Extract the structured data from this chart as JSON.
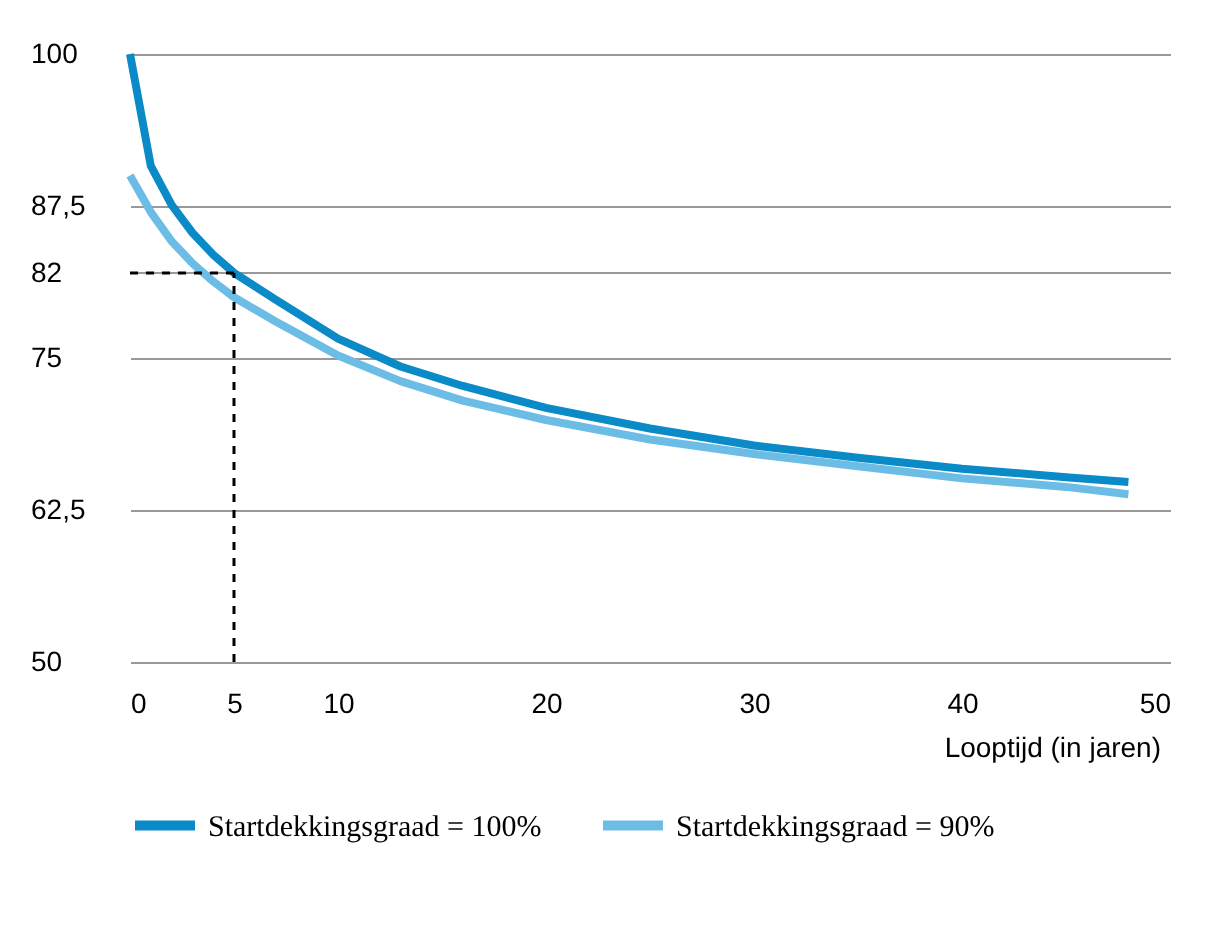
{
  "chart_data": {
    "type": "line",
    "xlabel": "Looptijd (in jaren)",
    "x": [
      0,
      1,
      2,
      3,
      4,
      5,
      7,
      10,
      13,
      16,
      20,
      25,
      30,
      35,
      40,
      45,
      48
    ],
    "series": [
      {
        "name": "Startdekkingsgraad = 100%",
        "color": "#0a8ac6",
        "values": [
          100,
          90.8,
          87.6,
          85.3,
          83.5,
          82,
          79.8,
          76.6,
          74.3,
          72.7,
          70.9,
          69.2,
          67.8,
          66.8,
          65.9,
          65.2,
          64.8
        ]
      },
      {
        "name": "Startdekkingsgraad = 90%",
        "color": "#6cbde6",
        "values": [
          90,
          87,
          84.6,
          82.8,
          81.3,
          80,
          78,
          75.2,
          73.1,
          71.5,
          69.9,
          68.3,
          67.1,
          66.1,
          65.1,
          64.4,
          63.8
        ]
      }
    ],
    "xlim": [
      0,
      50
    ],
    "xticks": [
      0,
      5,
      10,
      20,
      30,
      40,
      50
    ],
    "ylim": [
      50,
      100
    ],
    "yticks": [
      50,
      {
        "value": 62.5,
        "label": "62,5"
      },
      75,
      {
        "value": 82,
        "label": "82"
      },
      {
        "value": 87.5,
        "label": "87,5"
      },
      100
    ],
    "ref_lines": [
      {
        "axis": "y",
        "value": 82,
        "color": "#000000",
        "line_style": "dashed"
      },
      {
        "axis": "x",
        "value": 5,
        "color": "#000000",
        "line_style": "dashed"
      }
    ],
    "grid": "y",
    "legend": "bottom",
    "line_style": "solid",
    "marker": "none"
  }
}
